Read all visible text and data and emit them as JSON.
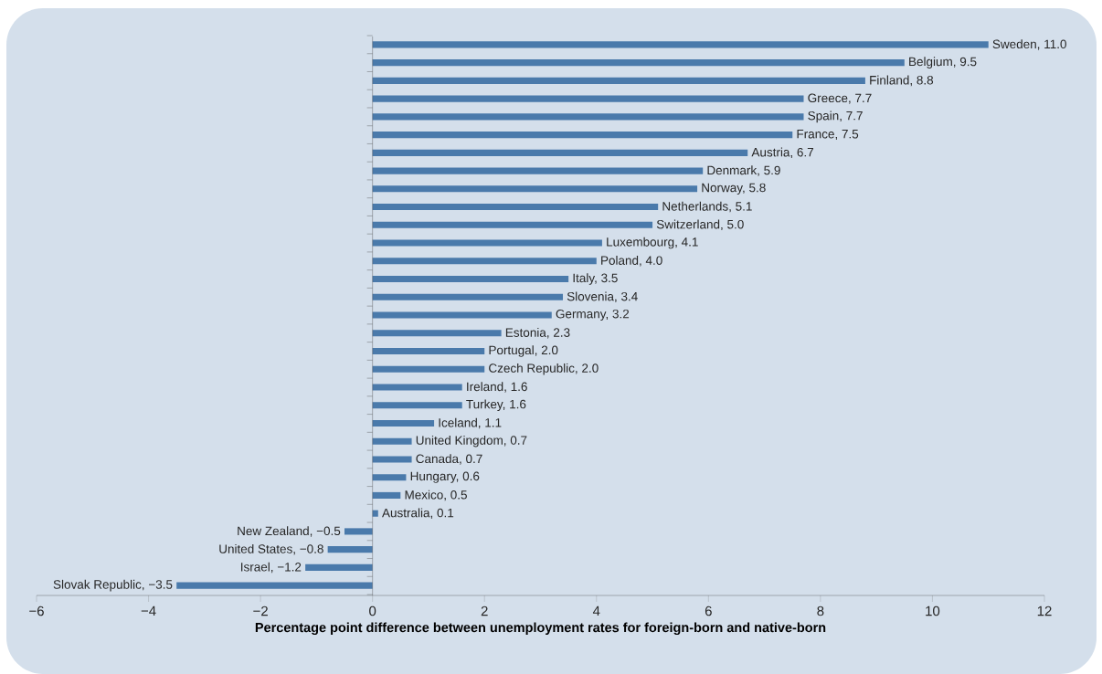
{
  "chart_data": {
    "type": "bar",
    "orientation": "horizontal",
    "xlabel": "Percentage point difference between unemployment rates for foreign-born and native-born",
    "categories": [
      null,
      null,
      null,
      null,
      null,
      null,
      null,
      null,
      null,
      null,
      null,
      null,
      null,
      null,
      null,
      null,
      null,
      null,
      null,
      null,
      null,
      null,
      null,
      null,
      null,
      null,
      null,
      null,
      null,
      null,
      null
    ],
    "values": [
      11.0,
      9.5,
      8.8,
      7.7,
      7.7,
      7.5,
      6.7,
      5.9,
      5.8,
      5.1,
      5.0,
      4.1,
      4.0,
      3.5,
      3.4,
      3.2,
      2.3,
      2.0,
      2.0,
      1.6,
      1.6,
      1.1,
      0.7,
      0.7,
      0.6,
      0.5,
      0.1,
      -0.5,
      -0.8,
      -1.2,
      -3.5
    ],
    "value_labels": [
      "Sweden, 11.0",
      "Belgium, 9.5",
      "Finland, 8.8",
      "Greece, 7.7",
      "Spain, 7.7",
      "France, 7.5",
      "Austria, 6.7",
      "Denmark, 5.9",
      "Norway, 5.8",
      "Netherlands, 5.1",
      "Switzerland, 5.0",
      "Luxembourg, 4.1",
      "Poland, 4.0",
      "Italy, 3.5",
      "Slovenia, 3.4",
      "Germany, 3.2",
      "Estonia, 2.3",
      "Portugal, 2.0",
      "Czech Republic, 2.0",
      "Ireland, 1.6",
      "Turkey, 1.6",
      "Iceland, 1.1",
      "United Kingdom, 0.7",
      "Canada, 0.7",
      "Hungary, 0.6",
      "Mexico, 0.5",
      "Australia, 0.1",
      "New Zealand, −0.5",
      "United States, −0.8",
      "Israel, −1.2",
      "Slovak Republic, −3.5"
    ],
    "color": "#4a7aab",
    "xlim": [
      -6,
      12
    ],
    "xticks": [
      {
        "value": -6,
        "label": "−6"
      },
      {
        "value": -4,
        "label": "−4"
      },
      {
        "value": -2,
        "label": "−2"
      },
      0,
      2,
      4,
      6,
      8,
      10,
      12
    ]
  }
}
